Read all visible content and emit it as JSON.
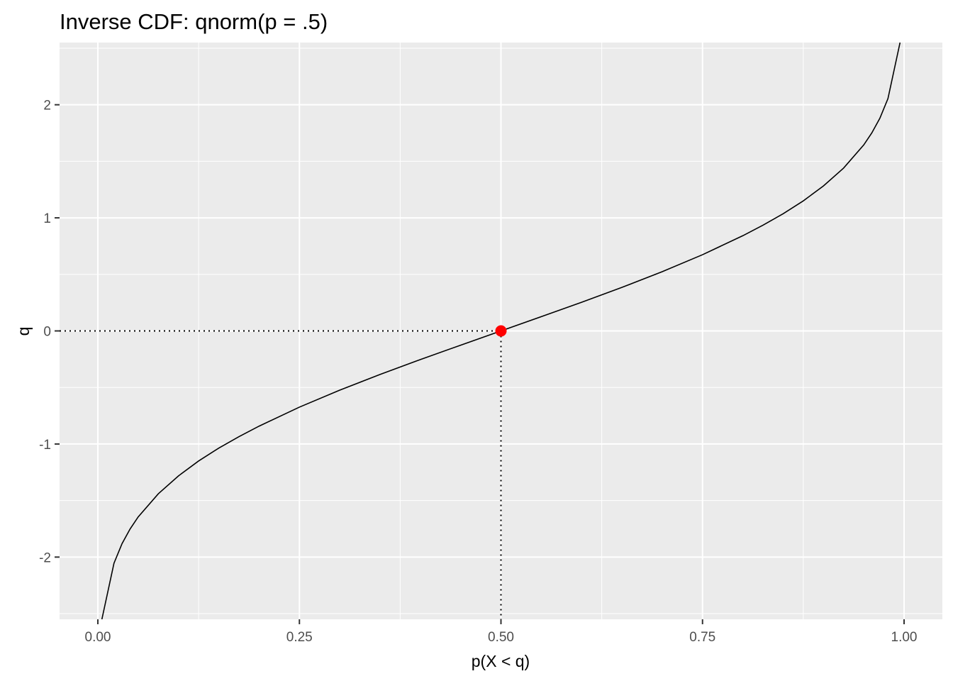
{
  "chart_data": {
    "type": "line",
    "title": "Inverse CDF: qnorm(p = .5)",
    "xlabel": "p(X < q)",
    "ylabel": "q",
    "xlim": [
      -0.0475,
      1.0475
    ],
    "ylim": [
      -2.55,
      2.55
    ],
    "x_ticks": [
      0,
      0.25,
      0.5,
      0.75,
      1
    ],
    "x_tick_labels": [
      "0.00",
      "0.25",
      "0.50",
      "0.75",
      "1.00"
    ],
    "y_ticks": [
      -2,
      -1,
      0,
      1,
      2
    ],
    "y_tick_labels": [
      "-2",
      "-1",
      "0",
      "1",
      "2"
    ],
    "grid": true,
    "series": [
      {
        "values_source": "qnorm(p), p from 0.005 to 0.995",
        "x": [
          0.005,
          0.02,
          0.03,
          0.04,
          0.05,
          0.075,
          0.1,
          0.125,
          0.15,
          0.175,
          0.2,
          0.25,
          0.3,
          0.35,
          0.4,
          0.45,
          0.5,
          0.55,
          0.6,
          0.65,
          0.7,
          0.75,
          0.8,
          0.825,
          0.85,
          0.875,
          0.9,
          0.925,
          0.95,
          0.96,
          0.97,
          0.98,
          0.995
        ],
        "y": [
          -2.576,
          -2.054,
          -1.881,
          -1.751,
          -1.645,
          -1.44,
          -1.282,
          -1.15,
          -1.036,
          -0.935,
          -0.842,
          -0.674,
          -0.524,
          -0.385,
          -0.253,
          -0.126,
          0.0,
          0.126,
          0.253,
          0.385,
          0.524,
          0.674,
          0.842,
          0.935,
          1.036,
          1.15,
          1.282,
          1.44,
          1.645,
          1.751,
          1.881,
          2.054,
          2.576
        ],
        "color": "#000000"
      }
    ],
    "highlight_point": {
      "x": 0.5,
      "y": 0.0,
      "color": "#ff0000"
    },
    "colors": {
      "panel": "#ebebeb",
      "grid": "#ffffff",
      "line": "#000000",
      "point": "#ff0000"
    }
  }
}
